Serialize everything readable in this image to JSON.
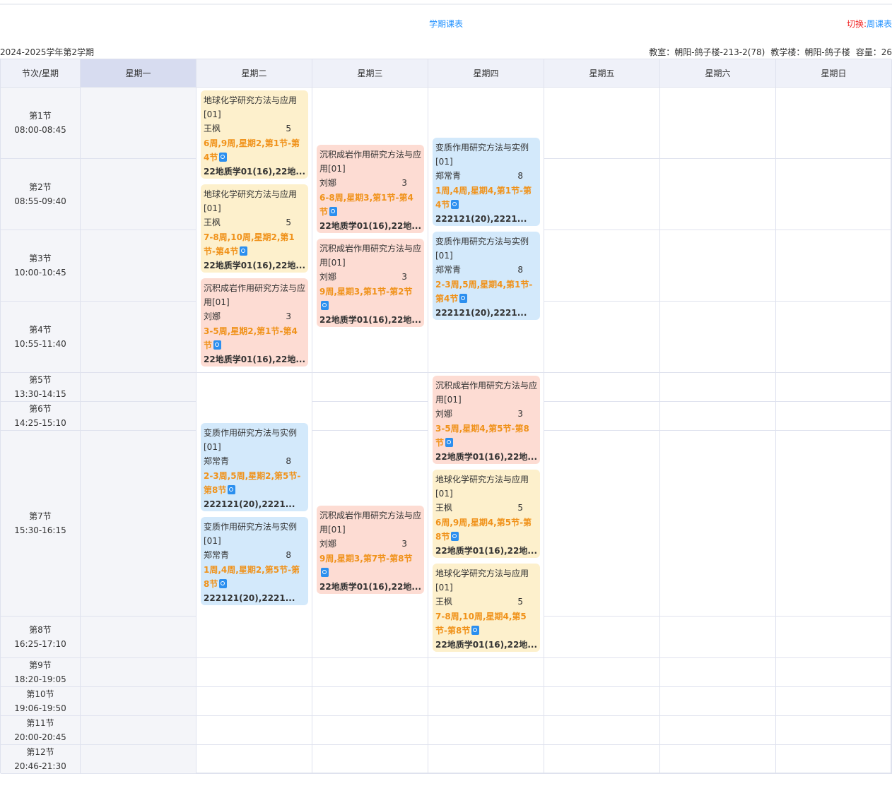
{
  "header": {
    "title": "学期课表",
    "switch_label": "切换:",
    "switch_link": "周课表",
    "term": "2024-2025学年第2学期",
    "classroom": "教室：朝阳-鸽子楼-213-2(78)",
    "building": "教学楼：朝阳-鸽子楼",
    "capacity": "容量：26"
  },
  "columns": [
    "节次/星期",
    "星期一",
    "星期二",
    "星期三",
    "星期四",
    "星期五",
    "星期六",
    "星期日"
  ],
  "periods": [
    {
      "name": "第1节",
      "time": "08:00-08:45"
    },
    {
      "name": "第2节",
      "time": "08:55-09:40"
    },
    {
      "name": "第3节",
      "time": "10:00-10:45"
    },
    {
      "name": "第4节",
      "time": "10:55-11:40"
    },
    {
      "name": "第5节",
      "time": "13:30-14:15"
    },
    {
      "name": "第6节",
      "time": "14:25-15:10"
    },
    {
      "name": "第7节",
      "time": "15:30-16:15"
    },
    {
      "name": "第8节",
      "time": "16:25-17:10"
    },
    {
      "name": "第9节",
      "time": "18:20-19:05"
    },
    {
      "name": "第10节",
      "time": "19:06-19:50"
    },
    {
      "name": "第11节",
      "time": "20:00-20:45"
    },
    {
      "name": "第12节",
      "time": "20:46-21:30"
    }
  ],
  "colors": {
    "yellow": "#fdf0cc",
    "red": "#fddcd3",
    "blue": "#d3e9fb",
    "accent": "#1e90ff",
    "weeks": "#f0921a"
  },
  "courses": [
    {
      "day": 2,
      "color": "yellow",
      "name": "地球化学研究方法与应用[01]",
      "teacher": "王枫",
      "num": "5",
      "weeks": "6周,9周,星期2,第1节-第4节",
      "classes": "22地质学01(16),22地..."
    },
    {
      "day": 2,
      "color": "yellow",
      "name": "地球化学研究方法与应用[01]",
      "teacher": "王枫",
      "num": "5",
      "weeks": "7-8周,10周,星期2,第1节-第4节",
      "classes": "22地质学01(16),22地..."
    },
    {
      "day": 2,
      "color": "red",
      "name": "沉积成岩作用研究方法与应用[01]",
      "teacher": "刘娜",
      "num": "3",
      "weeks": "3-5周,星期2,第1节-第4节",
      "classes": "22地质学01(16),22地..."
    },
    {
      "day": 2,
      "color": "blue",
      "name": "变质作用研究方法与实例[01]",
      "teacher": "郑常青",
      "num": "8",
      "weeks": "2-3周,5周,星期2,第5节-第8节",
      "classes": "222121(20),2221..."
    },
    {
      "day": 2,
      "color": "blue",
      "name": "变质作用研究方法与实例[01]",
      "teacher": "郑常青",
      "num": "8",
      "weeks": "1周,4周,星期2,第5节-第8节",
      "classes": "222121(20),2221..."
    },
    {
      "day": 3,
      "color": "red",
      "name": "沉积成岩作用研究方法与应用[01]",
      "teacher": "刘娜",
      "num": "3",
      "weeks": "6-8周,星期3,第1节-第4节",
      "classes": "22地质学01(16),22地..."
    },
    {
      "day": 3,
      "color": "red",
      "name": "沉积成岩作用研究方法与应用[01]",
      "teacher": "刘娜",
      "num": "3",
      "weeks": "9周,星期3,第1节-第2节",
      "classes": "22地质学01(16),22地..."
    },
    {
      "day": 3,
      "color": "red",
      "name": "沉积成岩作用研究方法与应用[01]",
      "teacher": "刘娜",
      "num": "3",
      "weeks": "9周,星期3,第7节-第8节",
      "classes": "22地质学01(16),22地..."
    },
    {
      "day": 4,
      "color": "blue",
      "name": "变质作用研究方法与实例[01]",
      "teacher": "郑常青",
      "num": "8",
      "weeks": "1周,4周,星期4,第1节-第4节",
      "classes": "222121(20),2221..."
    },
    {
      "day": 4,
      "color": "blue",
      "name": "变质作用研究方法与实例[01]",
      "teacher": "郑常青",
      "num": "8",
      "weeks": "2-3周,5周,星期4,第1节-第4节",
      "classes": "222121(20),2221..."
    },
    {
      "day": 4,
      "color": "red",
      "name": "沉积成岩作用研究方法与应用[01]",
      "teacher": "刘娜",
      "num": "3",
      "weeks": "3-5周,星期4,第5节-第8节",
      "classes": "22地质学01(16),22地..."
    },
    {
      "day": 4,
      "color": "yellow",
      "name": "地球化学研究方法与应用[01]",
      "teacher": "王枫",
      "num": "5",
      "weeks": "6周,9周,星期4,第5节-第8节",
      "classes": "22地质学01(16),22地..."
    },
    {
      "day": 4,
      "color": "yellow",
      "name": "地球化学研究方法与应用[01]",
      "teacher": "王枫",
      "num": "5",
      "weeks": "7-8周,10周,星期4,第5节-第8节",
      "classes": "22地质学01(16),22地..."
    }
  ]
}
